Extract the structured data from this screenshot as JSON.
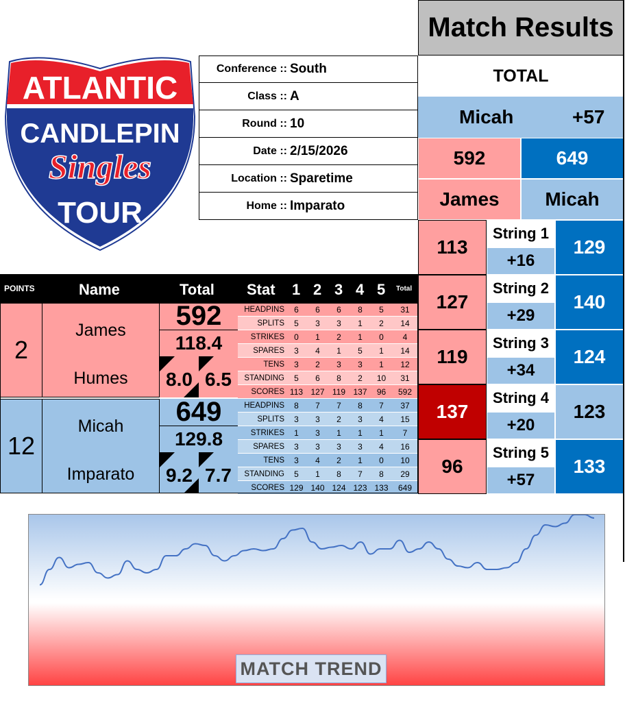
{
  "logo": {
    "line1": "ATLANTIC",
    "line2": "CANDLEPIN",
    "line3": "Singles",
    "line4": "TOUR"
  },
  "info": [
    {
      "key": "Conference ::",
      "value": "South"
    },
    {
      "key": "Class ::",
      "value": "A"
    },
    {
      "key": "Round ::",
      "value": "10"
    },
    {
      "key": "Date ::",
      "value": "2/15/2026"
    },
    {
      "key": "Location ::",
      "value": "Sparetime"
    },
    {
      "key": "Home ::",
      "value": "Imparato"
    }
  ],
  "results": {
    "title": "Match Results",
    "total_label": "TOTAL",
    "leader": "Micah",
    "margin": "+57",
    "score_left": "592",
    "score_right": "649",
    "name_left": "James",
    "name_right": "Micah",
    "strings": [
      {
        "label": "String 1",
        "left": "113",
        "diff": "+16",
        "right": "129"
      },
      {
        "label": "String 2",
        "left": "127",
        "diff": "+29",
        "right": "140"
      },
      {
        "label": "String 3",
        "left": "119",
        "diff": "+34",
        "right": "124"
      },
      {
        "label": "String 4",
        "left": "137",
        "diff": "+20",
        "right": "123"
      },
      {
        "label": "String 5",
        "left": "96",
        "diff": "+57",
        "right": "133"
      }
    ]
  },
  "table": {
    "headers": {
      "points": "POINTS",
      "name": "Name",
      "total": "Total",
      "stat": "Stat",
      "cols": [
        "1",
        "2",
        "3",
        "4",
        "5"
      ],
      "total_small": "Total"
    },
    "players": [
      {
        "points": "2",
        "first": "James",
        "last": "Humes",
        "total": "592",
        "avg": "118.4",
        "a": "8.0",
        "b": "6.5",
        "stats": [
          [
            "HEADPINS",
            "6",
            "6",
            "6",
            "8",
            "5",
            "31"
          ],
          [
            "SPLITS",
            "5",
            "3",
            "3",
            "1",
            "2",
            "14"
          ],
          [
            "STRIKES",
            "0",
            "1",
            "2",
            "1",
            "0",
            "4"
          ],
          [
            "SPARES",
            "3",
            "4",
            "1",
            "5",
            "1",
            "14"
          ],
          [
            "TENS",
            "3",
            "2",
            "3",
            "3",
            "1",
            "12"
          ],
          [
            "STANDING",
            "5",
            "6",
            "8",
            "2",
            "10",
            "31"
          ],
          [
            "SCORES",
            "113",
            "127",
            "119",
            "137",
            "96",
            "592"
          ]
        ]
      },
      {
        "points": "12",
        "first": "Micah",
        "last": "Imparato",
        "total": "649",
        "avg": "129.8",
        "a": "9.2",
        "b": "7.7",
        "stats": [
          [
            "HEADPINS",
            "8",
            "7",
            "7",
            "8",
            "7",
            "37"
          ],
          [
            "SPLITS",
            "3",
            "3",
            "2",
            "3",
            "4",
            "15"
          ],
          [
            "STRIKES",
            "1",
            "3",
            "1",
            "1",
            "1",
            "7"
          ],
          [
            "SPARES",
            "3",
            "3",
            "3",
            "3",
            "4",
            "16"
          ],
          [
            "TENS",
            "3",
            "4",
            "2",
            "1",
            "0",
            "10"
          ],
          [
            "STANDING",
            "5",
            "1",
            "8",
            "7",
            "8",
            "29"
          ],
          [
            "SCORES",
            "129",
            "140",
            "124",
            "123",
            "133",
            "649"
          ]
        ]
      }
    ]
  },
  "chart_data": {
    "type": "line",
    "title": "MATCH TREND",
    "ylim": [
      0,
      100
    ],
    "grid": false,
    "color": "#4472c4",
    "values": [
      59,
      68,
      75,
      69,
      71,
      72,
      66,
      63,
      65,
      73,
      68,
      66,
      68,
      76,
      76,
      80,
      83,
      82,
      76,
      73,
      76,
      79,
      80,
      79,
      80,
      86,
      91,
      92,
      84,
      80,
      81,
      82,
      80,
      84,
      77,
      80,
      80,
      85,
      78,
      80,
      84,
      80,
      74,
      70,
      69,
      72,
      68,
      68,
      69,
      72,
      80,
      88,
      94,
      93,
      95,
      100,
      100,
      98
    ]
  },
  "colors": {
    "pink": "#ff9f9f",
    "light_blue": "#9dc3e6",
    "dark_blue": "#0070c0",
    "dark_red": "#c00000",
    "header_gray": "#bfbfbf"
  }
}
